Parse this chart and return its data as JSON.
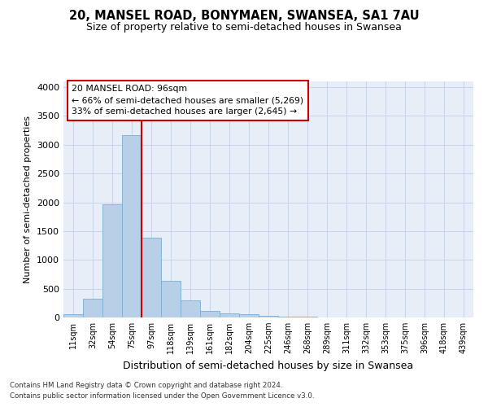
{
  "title": "20, MANSEL ROAD, BONYMAEN, SWANSEA, SA1 7AU",
  "subtitle": "Size of property relative to semi-detached houses in Swansea",
  "xlabel": "Distribution of semi-detached houses by size in Swansea",
  "ylabel": "Number of semi-detached properties",
  "categories": [
    "11sqm",
    "32sqm",
    "54sqm",
    "75sqm",
    "97sqm",
    "118sqm",
    "139sqm",
    "161sqm",
    "182sqm",
    "204sqm",
    "225sqm",
    "246sqm",
    "268sqm",
    "289sqm",
    "311sqm",
    "332sqm",
    "353sqm",
    "375sqm",
    "396sqm",
    "418sqm",
    "439sqm"
  ],
  "values": [
    50,
    320,
    1960,
    3160,
    1390,
    635,
    295,
    110,
    65,
    50,
    25,
    15,
    10,
    5,
    5,
    5,
    3,
    3,
    2,
    2,
    2
  ],
  "bar_color": "#b8cfe8",
  "bar_edge_color": "#7aaed4",
  "property_line_idx": 4,
  "property_sqm": 96,
  "pct_smaller": 66,
  "n_smaller": 5269,
  "pct_larger": 33,
  "n_larger": 2645,
  "annotation_box_color": "#ffffff",
  "annotation_box_edge_color": "#cc0000",
  "vline_color": "#cc0000",
  "grid_color": "#c8d4e8",
  "background_color": "#e8eef8",
  "footnote1": "Contains HM Land Registry data © Crown copyright and database right 2024.",
  "footnote2": "Contains public sector information licensed under the Open Government Licence v3.0.",
  "ylim": [
    0,
    4100
  ],
  "yticks": [
    0,
    500,
    1000,
    1500,
    2000,
    2500,
    3000,
    3500,
    4000
  ]
}
